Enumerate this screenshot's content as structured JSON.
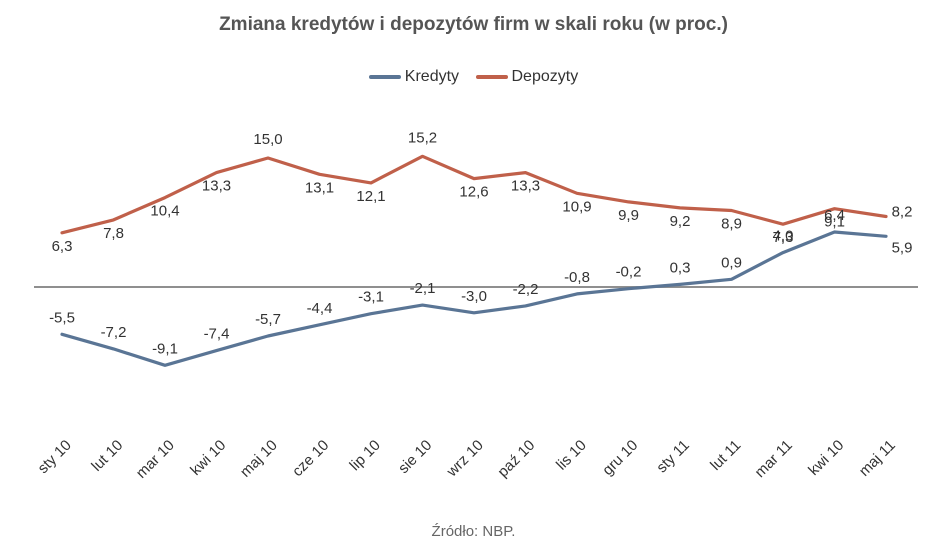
{
  "chart_data": {
    "type": "line",
    "title": "Zmiana kredytów i depozytów firm w skali roku (w proc.)",
    "categories": [
      "sty 10",
      "lut 10",
      "mar 10",
      "kwi 10",
      "maj 10",
      "cze 10",
      "lip 10",
      "sie 10",
      "wrz 10",
      "paź 10",
      "lis 10",
      "gru 10",
      "sty 11",
      "lut 11",
      "mar 11",
      "kwi 10",
      "maj 11"
    ],
    "series": [
      {
        "name": "Kredyty",
        "color": "#5a7595",
        "values": [
          -5.5,
          -7.2,
          -9.1,
          -7.4,
          -5.7,
          -4.4,
          -3.1,
          -2.1,
          -3.0,
          -2.2,
          -0.8,
          -0.2,
          0.3,
          0.9,
          4.0,
          6.4,
          5.9
        ],
        "labels": [
          "-5,5",
          "-7,2",
          "-9,1",
          "-7,4",
          "-5,7",
          "-4,4",
          "-3,1",
          "-2,1",
          "-3,0",
          "-2,2",
          "-0,8",
          "-0,2",
          "0,3",
          "0,9",
          "4,0",
          "6,4",
          "5,9"
        ]
      },
      {
        "name": "Depozyty",
        "color": "#c0604a",
        "values": [
          6.3,
          7.8,
          10.4,
          13.3,
          15.0,
          13.1,
          12.1,
          15.2,
          12.6,
          13.3,
          10.9,
          9.9,
          9.2,
          8.9,
          7.3,
          9.1,
          8.2
        ],
        "labels": [
          "6,3",
          "7,8",
          "10,4",
          "13,3",
          "15,0",
          "13,1",
          "12,1",
          "15,2",
          "12,6",
          "13,3",
          "10,9",
          "9,9",
          "9,2",
          "8,9",
          "7,3",
          "9,1",
          "8,2"
        ]
      }
    ],
    "xlabel": "",
    "ylabel": "",
    "ylim": [
      -12,
      17
    ],
    "zero_line_color": "#8f8f8f",
    "grid": false,
    "legend": "top-center",
    "source": "Źródło: NBP."
  }
}
